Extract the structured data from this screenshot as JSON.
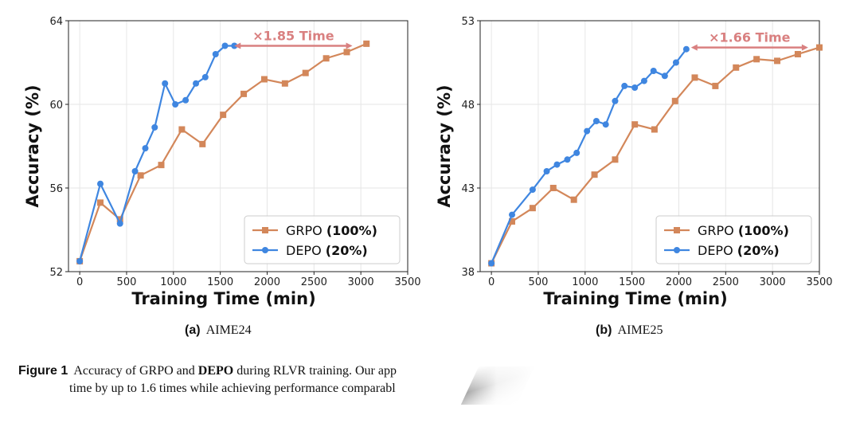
{
  "colors": {
    "grpo": "#d3875a",
    "depo": "#3f86e0",
    "annotation": "#d98080",
    "grid": "#e6e6e6"
  },
  "chart_data": [
    {
      "type": "line",
      "id": "aime24",
      "subcaption_label": "(a)",
      "subcaption_text": "AIME24",
      "xlabel": "Training Time (min)",
      "ylabel": "Accuracy (%)",
      "xlim": [
        -120,
        3500
      ],
      "ylim": [
        52,
        64
      ],
      "xticks": [
        "0",
        "500",
        "1000",
        "1500",
        "2000",
        "2500",
        "3000",
        "3500"
      ],
      "yticks": [
        "52",
        "56",
        "60",
        "64"
      ],
      "legend": {
        "position": "bottom-right"
      },
      "annotation": {
        "text": "×1.85 Time",
        "x_start": 1650,
        "x_end": 2910,
        "y": 62.8
      },
      "series": [
        {
          "name": "GRPO",
          "name_suffix": "(100%)",
          "color_key": "grpo",
          "marker": "square",
          "x": [
            0,
            220,
            430,
            650,
            870,
            1090,
            1310,
            1530,
            1750,
            1970,
            2190,
            2410,
            2630,
            2850,
            3060
          ],
          "y": [
            52.5,
            55.3,
            54.5,
            56.6,
            57.1,
            58.8,
            58.1,
            59.5,
            60.5,
            61.2,
            61.0,
            61.5,
            62.2,
            62.5,
            62.9
          ]
        },
        {
          "name": "DEPO",
          "name_suffix": "(20%)",
          "color_key": "depo",
          "marker": "circle",
          "x": [
            0,
            220,
            430,
            590,
            700,
            800,
            910,
            1020,
            1130,
            1240,
            1340,
            1450,
            1550,
            1650
          ],
          "y": [
            52.5,
            56.2,
            54.3,
            56.8,
            57.9,
            58.9,
            61.0,
            60.0,
            60.2,
            61.0,
            61.3,
            62.4,
            62.8,
            62.8
          ]
        }
      ]
    },
    {
      "type": "line",
      "id": "aime25",
      "subcaption_label": "(b)",
      "subcaption_text": "AIME25",
      "xlabel": "Training Time (min)",
      "ylabel": "Accuracy (%)",
      "xlim": [
        -120,
        3500
      ],
      "ylim": [
        38,
        53
      ],
      "xticks": [
        "0",
        "500",
        "1000",
        "1500",
        "2000",
        "2500",
        "3000",
        "3500"
      ],
      "yticks": [
        "38",
        "43",
        "48",
        "53"
      ],
      "legend": {
        "position": "bottom-right"
      },
      "annotation": {
        "text": "×1.66 Time",
        "x_start": 2130,
        "x_end": 3380,
        "y": 51.4
      },
      "series": [
        {
          "name": "GRPO",
          "name_suffix": "(100%)",
          "color_key": "grpo",
          "marker": "square",
          "x": [
            0,
            220,
            440,
            660,
            880,
            1100,
            1320,
            1530,
            1740,
            1960,
            2170,
            2390,
            2610,
            2830,
            3050,
            3270,
            3500
          ],
          "y": [
            38.5,
            41.0,
            41.8,
            43.0,
            42.3,
            43.8,
            44.7,
            46.8,
            46.5,
            48.2,
            49.6,
            49.1,
            50.2,
            50.7,
            50.6,
            51.0,
            51.4
          ]
        },
        {
          "name": "DEPO",
          "name_suffix": "(20%)",
          "color_key": "depo",
          "marker": "circle",
          "x": [
            0,
            220,
            440,
            590,
            700,
            810,
            910,
            1020,
            1120,
            1220,
            1320,
            1420,
            1530,
            1630,
            1730,
            1850,
            1970,
            2080
          ],
          "y": [
            38.5,
            41.4,
            42.9,
            44.0,
            44.4,
            44.7,
            45.1,
            46.4,
            47.0,
            46.8,
            48.2,
            49.1,
            49.0,
            49.4,
            50.0,
            49.7,
            50.5,
            51.3
          ]
        }
      ]
    }
  ],
  "figure_caption": {
    "label": "Figure 1",
    "line1_a": "Accuracy of GRPO and ",
    "line1_bold": "DEPO",
    "line1_b": " during RLVR training. Our app",
    "line2": "time by up to 1.6 times while achieving performance comparabl"
  }
}
